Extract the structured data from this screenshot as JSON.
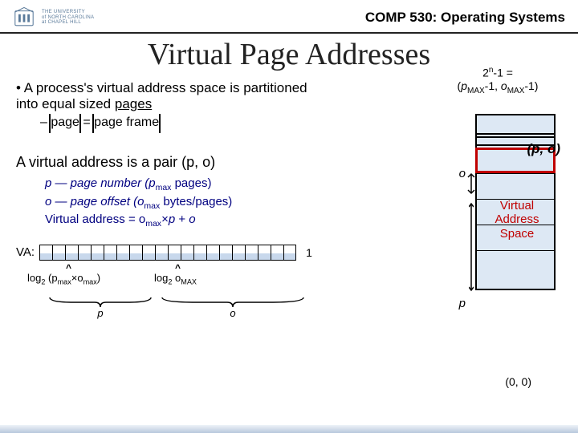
{
  "header": {
    "logo_text_line1": "THE UNIVERSITY",
    "logo_text_line2": "of NORTH CAROLINA",
    "logo_text_line3": "at CHAPEL HILL",
    "course": "COMP 530: Operating Systems"
  },
  "title": "Virtual Page Addresses",
  "bullet": {
    "text_pre": "A process's virtual address space is partitioned into equal sized ",
    "text_underlined": "pages",
    "sub_pre": "|",
    "sub_page": "page",
    "sub_eq": " = ",
    "sub_frame": "page frame"
  },
  "pair_intro": "A virtual address is a pair (",
  "pair_p": "p",
  "pair_sep": ", ",
  "pair_o": "o",
  "pair_close": ")",
  "defs": {
    "p_line": "p      — page number (p",
    "p_line_sub": "max",
    "p_line_end": " pages)",
    "o_line": "o      — page offset (o",
    "o_line_sub": "max",
    "o_line_end": " bytes/pages)",
    "va_line": "Virtual address = o",
    "va_line_sub": "max",
    "va_line_mid": "×",
    "va_line_p": "p",
    "va_line_plus": " + ",
    "va_line_o": "o"
  },
  "va_label": "VA:",
  "bit_count": 20,
  "one": "1",
  "log1_pre": "log",
  "log1_sub": "2",
  "log1_body": " (p",
  "log1_bodysub": "max",
  "log1_mid": "×o",
  "log1_bodysub2": "max",
  "log1_end": ")",
  "log2_pre": "log",
  "log2_sub": "2",
  "log2_body": " o",
  "log2_bodysub": "MAX",
  "brace_p": "p",
  "brace_o": "o",
  "topexpr": {
    "line1_pre": "2",
    "line1_sup": "n",
    "line1_post": "-1 =",
    "line2_pre": "(",
    "line2_p": "p",
    "line2_sub": "MAX",
    "line2_mid": "-1, ",
    "line2_o": "o",
    "line2_sub2": "MAX",
    "line2_end": "-1)"
  },
  "po": "(p, o)",
  "o_side": "o",
  "p_side": "p",
  "vas_text_l1": "Virtual",
  "vas_text_l2": "Address",
  "vas_text_l3": "Space",
  "origin": "(0, 0)",
  "colors": {
    "navy": "#000080",
    "red": "#c00000",
    "stack_fill": "#dde8f4"
  }
}
